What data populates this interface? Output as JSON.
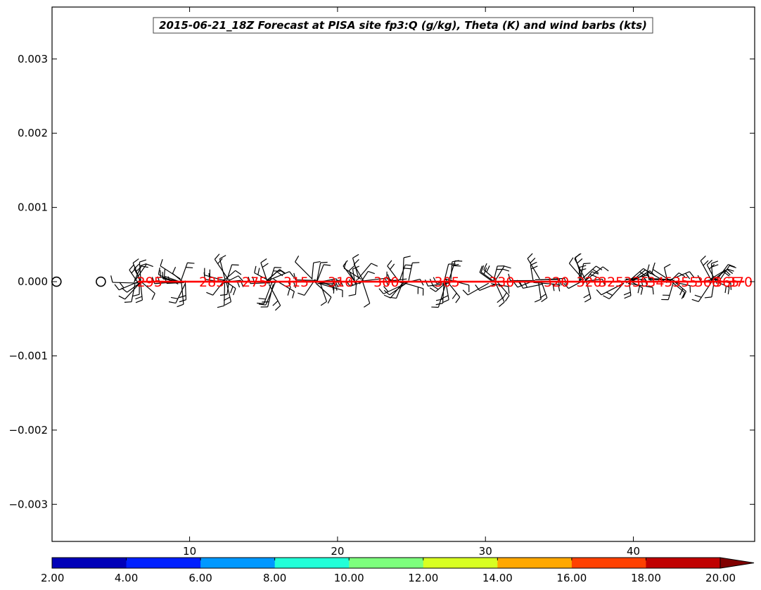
{
  "chart_data": {
    "type": "line",
    "title": "2015-06-21_18Z Forecast at PISA site fp3:Q (g/kg), Theta (K) and wind barbs (kts)",
    "xlabel": "",
    "ylabel": "",
    "xlim": [
      0.7,
      48.2
    ],
    "ylim": [
      -0.0035,
      0.0037
    ],
    "x_ticks": [
      {
        "value": 10,
        "label": "10"
      },
      {
        "value": 20,
        "label": "20"
      },
      {
        "value": 30,
        "label": "30"
      },
      {
        "value": 40,
        "label": "40"
      }
    ],
    "y_ticks": [
      {
        "value": 0.003,
        "label": "0.003"
      },
      {
        "value": 0.002,
        "label": "0.002"
      },
      {
        "value": 0.001,
        "label": "0.001"
      },
      {
        "value": 0.0,
        "label": "0.000"
      },
      {
        "value": -0.001,
        "label": "−0.001"
      },
      {
        "value": -0.002,
        "label": "−0.002"
      },
      {
        "value": -0.003,
        "label": "−0.003"
      }
    ],
    "theta_line": {
      "x_start": 6.5,
      "x_end": 47.5,
      "y": 0,
      "color": "#ff0000"
    },
    "theta_labels": [
      {
        "x": 7.3,
        "text": "295"
      },
      {
        "x": 11.5,
        "text": "285"
      },
      {
        "x": 14.4,
        "text": "275"
      },
      {
        "x": 17.2,
        "text": "315"
      },
      {
        "x": 20.2,
        "text": "310"
      },
      {
        "x": 23.3,
        "text": "300"
      },
      {
        "x": 27.4,
        "text": "305"
      },
      {
        "x": 31.1,
        "text": "330"
      },
      {
        "x": 34.8,
        "text": "320"
      },
      {
        "x": 37.0,
        "text": "320"
      },
      {
        "x": 38.5,
        "text": "325"
      },
      {
        "x": 40.2,
        "text": "335"
      },
      {
        "x": 41.8,
        "text": "345"
      },
      {
        "x": 43.5,
        "text": "355"
      },
      {
        "x": 45.0,
        "text": "360"
      },
      {
        "x": 46.3,
        "text": "365"
      },
      {
        "x": 47.2,
        "text": "370"
      }
    ],
    "calm_markers": [
      1.0,
      4.0
    ],
    "barb_clusters": [
      {
        "x": 6.5,
        "count": 14
      },
      {
        "x": 9.5,
        "count": 12
      },
      {
        "x": 12.5,
        "count": 13
      },
      {
        "x": 15.5,
        "count": 13
      },
      {
        "x": 18.5,
        "count": 13
      },
      {
        "x": 21.5,
        "count": 12
      },
      {
        "x": 24.5,
        "count": 12
      },
      {
        "x": 27.5,
        "count": 11
      },
      {
        "x": 30.5,
        "count": 10
      },
      {
        "x": 33.5,
        "count": 10
      },
      {
        "x": 36.5,
        "count": 11
      },
      {
        "x": 39.5,
        "count": 11
      },
      {
        "x": 42.5,
        "count": 11
      },
      {
        "x": 45.5,
        "count": 12
      }
    ],
    "colorbar": {
      "ticks": [
        "2.00",
        "4.00",
        "6.00",
        "8.00",
        "10.00",
        "12.00",
        "14.00",
        "16.00",
        "18.00",
        "20.00"
      ],
      "colors": [
        "#0000b8",
        "#0020ff",
        "#0098ff",
        "#22ffd8",
        "#7dff7d",
        "#d8ff22",
        "#ffa800",
        "#ff4000",
        "#c00000",
        "#800000"
      ],
      "extend": "max"
    }
  }
}
